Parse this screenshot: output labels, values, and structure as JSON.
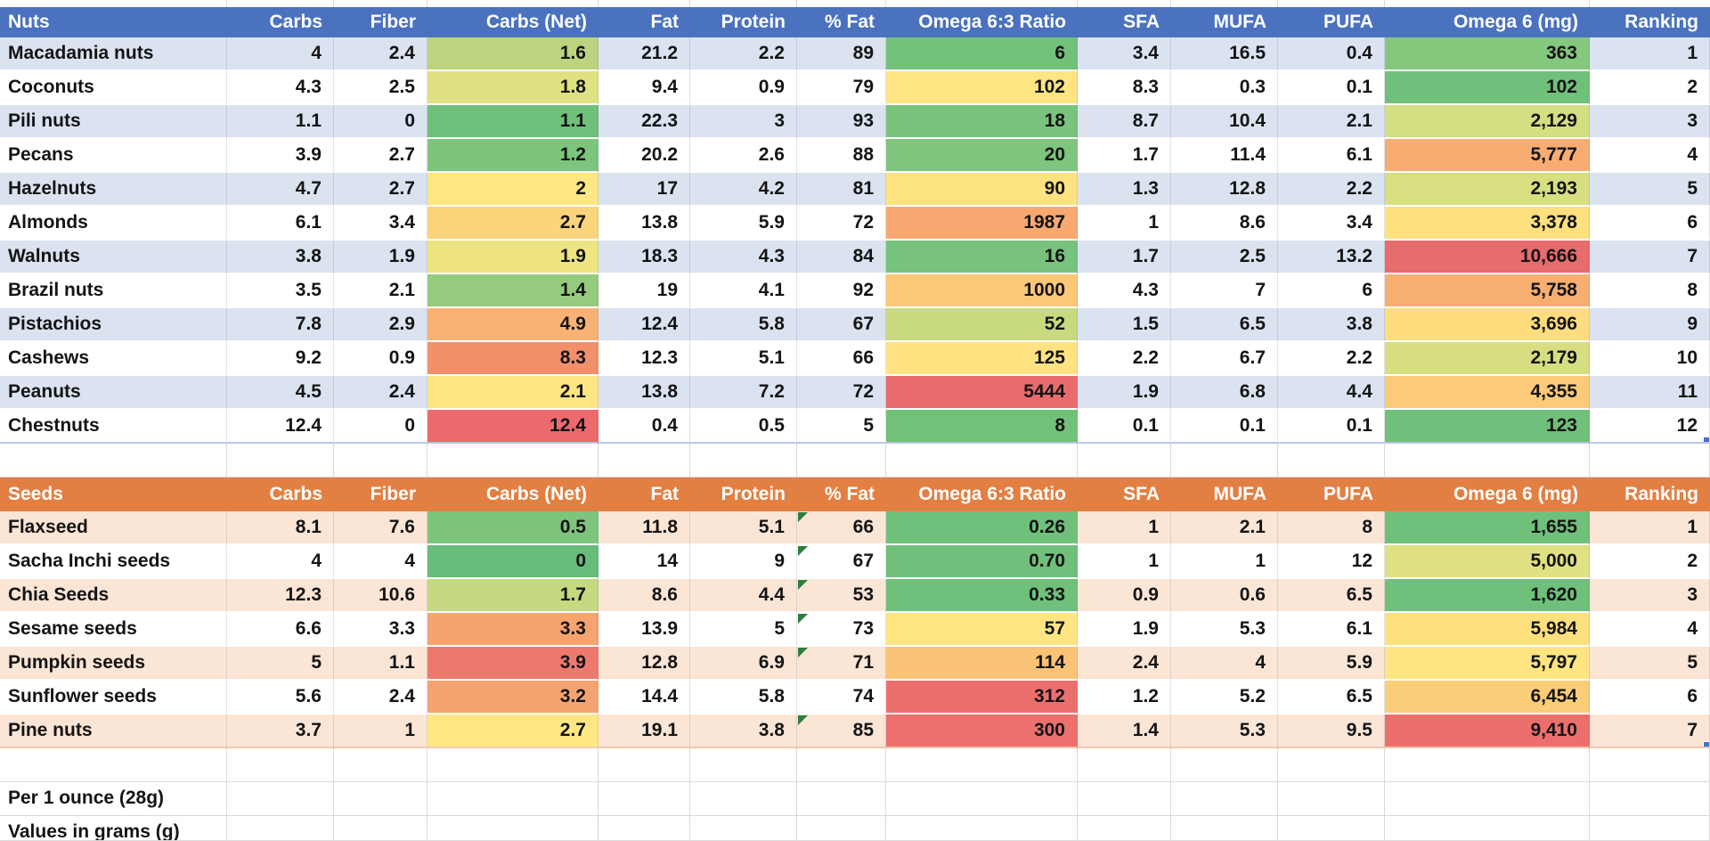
{
  "colors": {
    "nuts_header_bg": "#4a72bf",
    "nuts_band_bg": "#dbe3f1",
    "seeds_header_bg": "#e28044",
    "seeds_band_bg": "#fbe5d5",
    "header_text": "#ffffff",
    "gridline": "#d9d9d9",
    "error_triangle": "#2e7d3b",
    "selection_handle": "#4472c4",
    "top_fragment_green": "#4fa05f",
    "scale_green": "#63be7b",
    "scale_yellow": "#ffeb84",
    "scale_red": "#f8696b"
  },
  "column_keys": [
    "name",
    "carbs",
    "fiber",
    "carbs_net",
    "fat",
    "protein",
    "pct_fat",
    "ratio",
    "sfa",
    "mufa",
    "pufa",
    "omega6",
    "ranking"
  ],
  "footnotes": {
    "line1": "Per 1 ounce (28g)",
    "line2": "Values in grams (g)"
  },
  "tables": [
    {
      "id": "nuts",
      "title": "Nuts",
      "theme": {
        "header_bg": "#4a72bf",
        "band_bg": "#dbe3f1"
      },
      "headers": [
        "Nuts",
        "Carbs",
        "Fiber",
        "Carbs (Net)",
        "Fat",
        "Protein",
        "% Fat",
        "Omega 6:3 Ratio",
        "SFA",
        "MUFA",
        "PUFA",
        "Omega 6 (mg)",
        "Ranking"
      ],
      "rows": [
        {
          "name": "Macadamia nuts",
          "carbs": "4",
          "fiber": "2.4",
          "carbs_net": "1.6",
          "carbs_net_bg": "#bcd47f",
          "fat": "21.2",
          "protein": "2.2",
          "pct_fat": "89",
          "ratio": "6",
          "ratio_bg": "#71c17b",
          "sfa": "3.4",
          "mufa": "16.5",
          "pufa": "0.4",
          "omega6": "363",
          "omega6_bg": "#84c87d",
          "ranking": "1"
        },
        {
          "name": "Coconuts",
          "carbs": "4.3",
          "fiber": "2.5",
          "carbs_net": "1.8",
          "carbs_net_bg": "#e0e183",
          "fat": "9.4",
          "protein": "0.9",
          "pct_fat": "79",
          "ratio": "102",
          "ratio_bg": "#ffe483",
          "sfa": "8.3",
          "mufa": "0.3",
          "pufa": "0.1",
          "omega6": "102",
          "omega6_bg": "#70c07b",
          "ranking": "2"
        },
        {
          "name": "Pili nuts",
          "carbs": "1.1",
          "fiber": "0",
          "carbs_net": "1.1",
          "carbs_net_bg": "#6fc07b",
          "fat": "22.3",
          "protein": "3",
          "pct_fat": "93",
          "ratio": "18",
          "ratio_bg": "#7ac37c",
          "sfa": "8.7",
          "mufa": "10.4",
          "pufa": "2.1",
          "omega6": "2,129",
          "omega6_bg": "#d5de81",
          "ranking": "3"
        },
        {
          "name": "Pecans",
          "carbs": "3.9",
          "fiber": "2.7",
          "carbs_net": "1.2",
          "carbs_net_bg": "#7dc57d",
          "fat": "20.2",
          "protein": "2.6",
          "pct_fat": "88",
          "ratio": "20",
          "ratio_bg": "#7ec57d",
          "sfa": "1.7",
          "mufa": "11.4",
          "pufa": "6.1",
          "omega6": "5,777",
          "omega6_bg": "#f7ad71",
          "ranking": "4"
        },
        {
          "name": "Hazelnuts",
          "carbs": "4.7",
          "fiber": "2.7",
          "carbs_net": "2",
          "carbs_net_bg": "#ffe883",
          "fat": "17",
          "protein": "4.2",
          "pct_fat": "81",
          "ratio": "90",
          "ratio_bg": "#fde282",
          "sfa": "1.3",
          "mufa": "12.8",
          "pufa": "2.2",
          "omega6": "2,193",
          "omega6_bg": "#d7df81",
          "ranking": "5"
        },
        {
          "name": "Almonds",
          "carbs": "6.1",
          "fiber": "3.4",
          "carbs_net": "2.7",
          "carbs_net_bg": "#fcd47c",
          "fat": "13.8",
          "protein": "5.9",
          "pct_fat": "72",
          "ratio": "1987",
          "ratio_bg": "#f7a971",
          "sfa": "1",
          "mufa": "8.6",
          "pufa": "3.4",
          "omega6": "3,378",
          "omega6_bg": "#ffe07f",
          "ranking": "6"
        },
        {
          "name": "Walnuts",
          "carbs": "3.8",
          "fiber": "1.9",
          "carbs_net": "1.9",
          "carbs_net_bg": "#eee582",
          "fat": "18.3",
          "protein": "4.3",
          "pct_fat": "84",
          "ratio": "16",
          "ratio_bg": "#77c27c",
          "sfa": "1.7",
          "mufa": "2.5",
          "pufa": "13.2",
          "omega6": "10,666",
          "omega6_bg": "#e66c6d",
          "ranking": "7"
        },
        {
          "name": "Brazil nuts",
          "carbs": "3.5",
          "fiber": "2.1",
          "carbs_net": "1.4",
          "carbs_net_bg": "#96cb7e",
          "fat": "19",
          "protein": "4.1",
          "pct_fat": "92",
          "ratio": "1000",
          "ratio_bg": "#fbc877",
          "sfa": "4.3",
          "mufa": "7",
          "pufa": "6",
          "omega6": "5,758",
          "omega6_bg": "#f7ae71",
          "ranking": "8"
        },
        {
          "name": "Pistachios",
          "carbs": "7.8",
          "fiber": "2.9",
          "carbs_net": "4.9",
          "carbs_net_bg": "#f9b273",
          "fat": "12.4",
          "protein": "5.8",
          "pct_fat": "67",
          "ratio": "52",
          "ratio_bg": "#c8da80",
          "sfa": "1.5",
          "mufa": "6.5",
          "pufa": "3.8",
          "omega6": "3,696",
          "omega6_bg": "#ffdd7e",
          "ranking": "9"
        },
        {
          "name": "Cashews",
          "carbs": "9.2",
          "fiber": "0.9",
          "carbs_net": "8.3",
          "carbs_net_bg": "#f2906c",
          "fat": "12.3",
          "protein": "5.1",
          "pct_fat": "66",
          "ratio": "125",
          "ratio_bg": "#ffe382",
          "sfa": "2.2",
          "mufa": "6.7",
          "pufa": "2.2",
          "omega6": "2,179",
          "omega6_bg": "#d6de81",
          "ranking": "10"
        },
        {
          "name": "Peanuts",
          "carbs": "4.5",
          "fiber": "2.4",
          "carbs_net": "2.1",
          "carbs_net_bg": "#ffe583",
          "fat": "13.8",
          "protein": "7.2",
          "pct_fat": "72",
          "ratio": "5444",
          "ratio_bg": "#e96b6d",
          "sfa": "1.9",
          "mufa": "6.8",
          "pufa": "4.4",
          "omega6": "4,355",
          "omega6_bg": "#fccb79",
          "ranking": "11"
        },
        {
          "name": "Chestnuts",
          "carbs": "12.4",
          "fiber": "0",
          "carbs_net": "12.4",
          "carbs_net_bg": "#ec6a6d",
          "fat": "0.4",
          "protein": "0.5",
          "pct_fat": "5",
          "ratio": "8",
          "ratio_bg": "#72c17b",
          "sfa": "0.1",
          "mufa": "0.1",
          "pufa": "0.1",
          "omega6": "123",
          "omega6_bg": "#70c07b",
          "ranking": "12",
          "sel_handle": true
        }
      ]
    },
    {
      "id": "seeds",
      "title": "Seeds",
      "theme": {
        "header_bg": "#e28044",
        "band_bg": "#fbe5d5"
      },
      "headers": [
        "Seeds",
        "Carbs",
        "Fiber",
        "Carbs (Net)",
        "Fat",
        "Protein",
        "% Fat",
        "Omega 6:3 Ratio",
        "SFA",
        "MUFA",
        "PUFA",
        "Omega 6 (mg)",
        "Ranking"
      ],
      "rows": [
        {
          "name": "Flaxseed",
          "carbs": "8.1",
          "fiber": "7.6",
          "carbs_net": "0.5",
          "carbs_net_bg": "#7dc57d",
          "fat": "11.8",
          "protein": "5.1",
          "pct_fat": "66",
          "error_triangle": true,
          "ratio": "0.26",
          "ratio_bg": "#6fc07b",
          "sfa": "1",
          "mufa": "2.1",
          "pufa": "8",
          "omega6": "1,655",
          "omega6_bg": "#6fc07b",
          "ranking": "1"
        },
        {
          "name": "Sacha Inchi seeds",
          "carbs": "4",
          "fiber": "4",
          "carbs_net": "0",
          "carbs_net_bg": "#66bd7a",
          "fat": "14",
          "protein": "9",
          "pct_fat": "67",
          "error_triangle": true,
          "ratio": "0.70",
          "ratio_bg": "#70c07b",
          "sfa": "1",
          "mufa": "1",
          "pufa": "12",
          "omega6": "5,000",
          "omega6_bg": "#dfe182",
          "ranking": "2"
        },
        {
          "name": "Chia Seeds",
          "carbs": "12.3",
          "fiber": "10.6",
          "carbs_net": "1.7",
          "carbs_net_bg": "#c4d980",
          "fat": "8.6",
          "protein": "4.4",
          "pct_fat": "53",
          "error_triangle": true,
          "ratio": "0.33",
          "ratio_bg": "#6ec07b",
          "sfa": "0.9",
          "mufa": "0.6",
          "pufa": "6.5",
          "omega6": "1,620",
          "omega6_bg": "#6ec07b",
          "ranking": "3"
        },
        {
          "name": "Sesame seeds",
          "carbs": "6.6",
          "fiber": "3.3",
          "carbs_net": "3.3",
          "carbs_net_bg": "#f5a36f",
          "fat": "13.9",
          "protein": "5",
          "pct_fat": "73",
          "error_triangle": true,
          "ratio": "57",
          "ratio_bg": "#ffe683",
          "sfa": "1.9",
          "mufa": "5.3",
          "pufa": "6.1",
          "omega6": "5,984",
          "omega6_bg": "#ffe07f",
          "ranking": "4"
        },
        {
          "name": "Pumpkin seeds",
          "carbs": "5",
          "fiber": "1.1",
          "carbs_net": "3.9",
          "carbs_net_bg": "#ed796e",
          "fat": "12.8",
          "protein": "6.9",
          "pct_fat": "71",
          "error_triangle": true,
          "ratio": "114",
          "ratio_bg": "#fac376",
          "sfa": "2.4",
          "mufa": "4",
          "pufa": "5.9",
          "omega6": "5,797",
          "omega6_bg": "#ffe481",
          "ranking": "5"
        },
        {
          "name": "Sunflower seeds",
          "carbs": "5.6",
          "fiber": "2.4",
          "carbs_net": "3.2",
          "carbs_net_bg": "#f5a470",
          "fat": "14.4",
          "protein": "5.8",
          "pct_fat": "74",
          "ratio": "312",
          "ratio_bg": "#ec6f6e",
          "sfa": "1.2",
          "mufa": "5.2",
          "pufa": "6.5",
          "omega6": "6,454",
          "omega6_bg": "#fbcd79",
          "ranking": "6"
        },
        {
          "name": "Pine nuts",
          "carbs": "3.7",
          "fiber": "1",
          "carbs_net": "2.7",
          "carbs_net_bg": "#ffe883",
          "fat": "19.1",
          "protein": "3.8",
          "pct_fat": "85",
          "error_triangle": true,
          "ratio": "300",
          "ratio_bg": "#ec706e",
          "sfa": "1.4",
          "mufa": "5.3",
          "pufa": "9.5",
          "omega6": "9,410",
          "omega6_bg": "#ec6f6e",
          "ranking": "7",
          "sel_handle": true
        }
      ]
    }
  ]
}
